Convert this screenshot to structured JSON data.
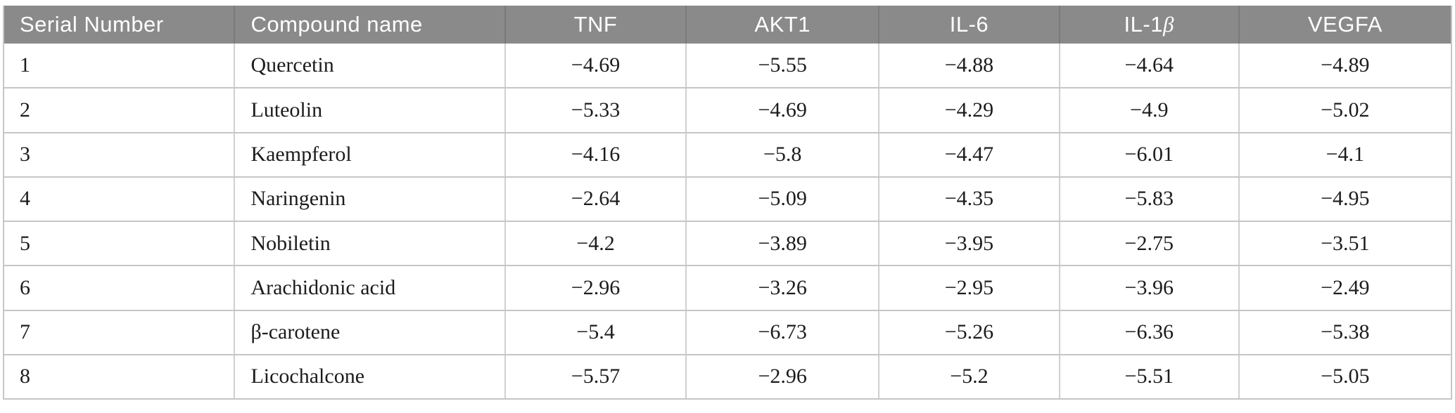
{
  "colors": {
    "page_background": "#ffffff",
    "header_background": "#8a8a8a",
    "header_text": "#ffffff",
    "header_divider": "#7b7b7b",
    "grid_line": "#c6c6c6",
    "body_text": "#1c1c1c"
  },
  "table": {
    "columns": [
      {
        "key": "serial",
        "label": "Serial Number",
        "align": "left",
        "width_pct": 15.96
      },
      {
        "key": "compound",
        "label": "Compound name",
        "align": "left",
        "width_pct": 18.67
      },
      {
        "key": "tnf",
        "label": "TNF",
        "align": "center",
        "width_pct": 12.52
      },
      {
        "key": "akt1",
        "label": "AKT1",
        "align": "center",
        "width_pct": 13.3
      },
      {
        "key": "il6",
        "label": "IL-6",
        "align": "center",
        "width_pct": 12.48
      },
      {
        "key": "il1b",
        "label": "IL-1",
        "italic_suffix": "β",
        "align": "center",
        "width_pct": 12.38
      },
      {
        "key": "vegfa",
        "label": "VEGFA",
        "align": "center",
        "width_pct": 14.69
      }
    ],
    "rows": [
      {
        "serial": "1",
        "compound": "Quercetin",
        "tnf": "−4.69",
        "akt1": "−5.55",
        "il6": "−4.88",
        "il1b": "−4.64",
        "vegfa": "−4.89"
      },
      {
        "serial": "2",
        "compound": "Luteolin",
        "tnf": "−5.33",
        "akt1": "−4.69",
        "il6": "−4.29",
        "il1b": "−4.9",
        "vegfa": "−5.02"
      },
      {
        "serial": "3",
        "compound": "Kaempferol",
        "tnf": "−4.16",
        "akt1": "−5.8",
        "il6": "−4.47",
        "il1b": "−6.01",
        "vegfa": "−4.1"
      },
      {
        "serial": "4",
        "compound": "Naringenin",
        "tnf": "−2.64",
        "akt1": "−5.09",
        "il6": "−4.35",
        "il1b": "−5.83",
        "vegfa": "−4.95"
      },
      {
        "serial": "5",
        "compound": "Nobiletin",
        "tnf": "−4.2",
        "akt1": "−3.89",
        "il6": "−3.95",
        "il1b": "−2.75",
        "vegfa": "−3.51"
      },
      {
        "serial": "6",
        "compound": "Arachidonic acid",
        "tnf": "−2.96",
        "akt1": "−3.26",
        "il6": "−2.95",
        "il1b": "−3.96",
        "vegfa": "−2.49"
      },
      {
        "serial": "7",
        "compound": "β-carotene",
        "tnf": "−5.4",
        "akt1": "−6.73",
        "il6": "−5.26",
        "il1b": "−6.36",
        "vegfa": "−5.38"
      },
      {
        "serial": "8",
        "compound": "Licochalcone",
        "tnf": "−5.57",
        "akt1": "−2.96",
        "il6": "−5.2",
        "il1b": "−5.51",
        "vegfa": "−5.05"
      }
    ]
  },
  "chart_data": {
    "type": "table",
    "title": "",
    "columns": [
      "Serial Number",
      "Compound name",
      "TNF",
      "AKT1",
      "IL-6",
      "IL-1β",
      "VEGFA"
    ],
    "rows": [
      [
        "1",
        "Quercetin",
        -4.69,
        -5.55,
        -4.88,
        -4.64,
        -4.89
      ],
      [
        "2",
        "Luteolin",
        -5.33,
        -4.69,
        -4.29,
        -4.9,
        -5.02
      ],
      [
        "3",
        "Kaempferol",
        -4.16,
        -5.8,
        -4.47,
        -6.01,
        -4.1
      ],
      [
        "4",
        "Naringenin",
        -2.64,
        -5.09,
        -4.35,
        -5.83,
        -4.95
      ],
      [
        "5",
        "Nobiletin",
        -4.2,
        -3.89,
        -3.95,
        -2.75,
        -3.51
      ],
      [
        "6",
        "Arachidonic acid",
        -2.96,
        -3.26,
        -2.95,
        -3.96,
        -2.49
      ],
      [
        "7",
        "β-carotene",
        -5.4,
        -6.73,
        -5.26,
        -6.36,
        -5.38
      ],
      [
        "8",
        "Licochalcone",
        -5.57,
        -2.96,
        -5.2,
        -5.51,
        -5.05
      ]
    ]
  }
}
